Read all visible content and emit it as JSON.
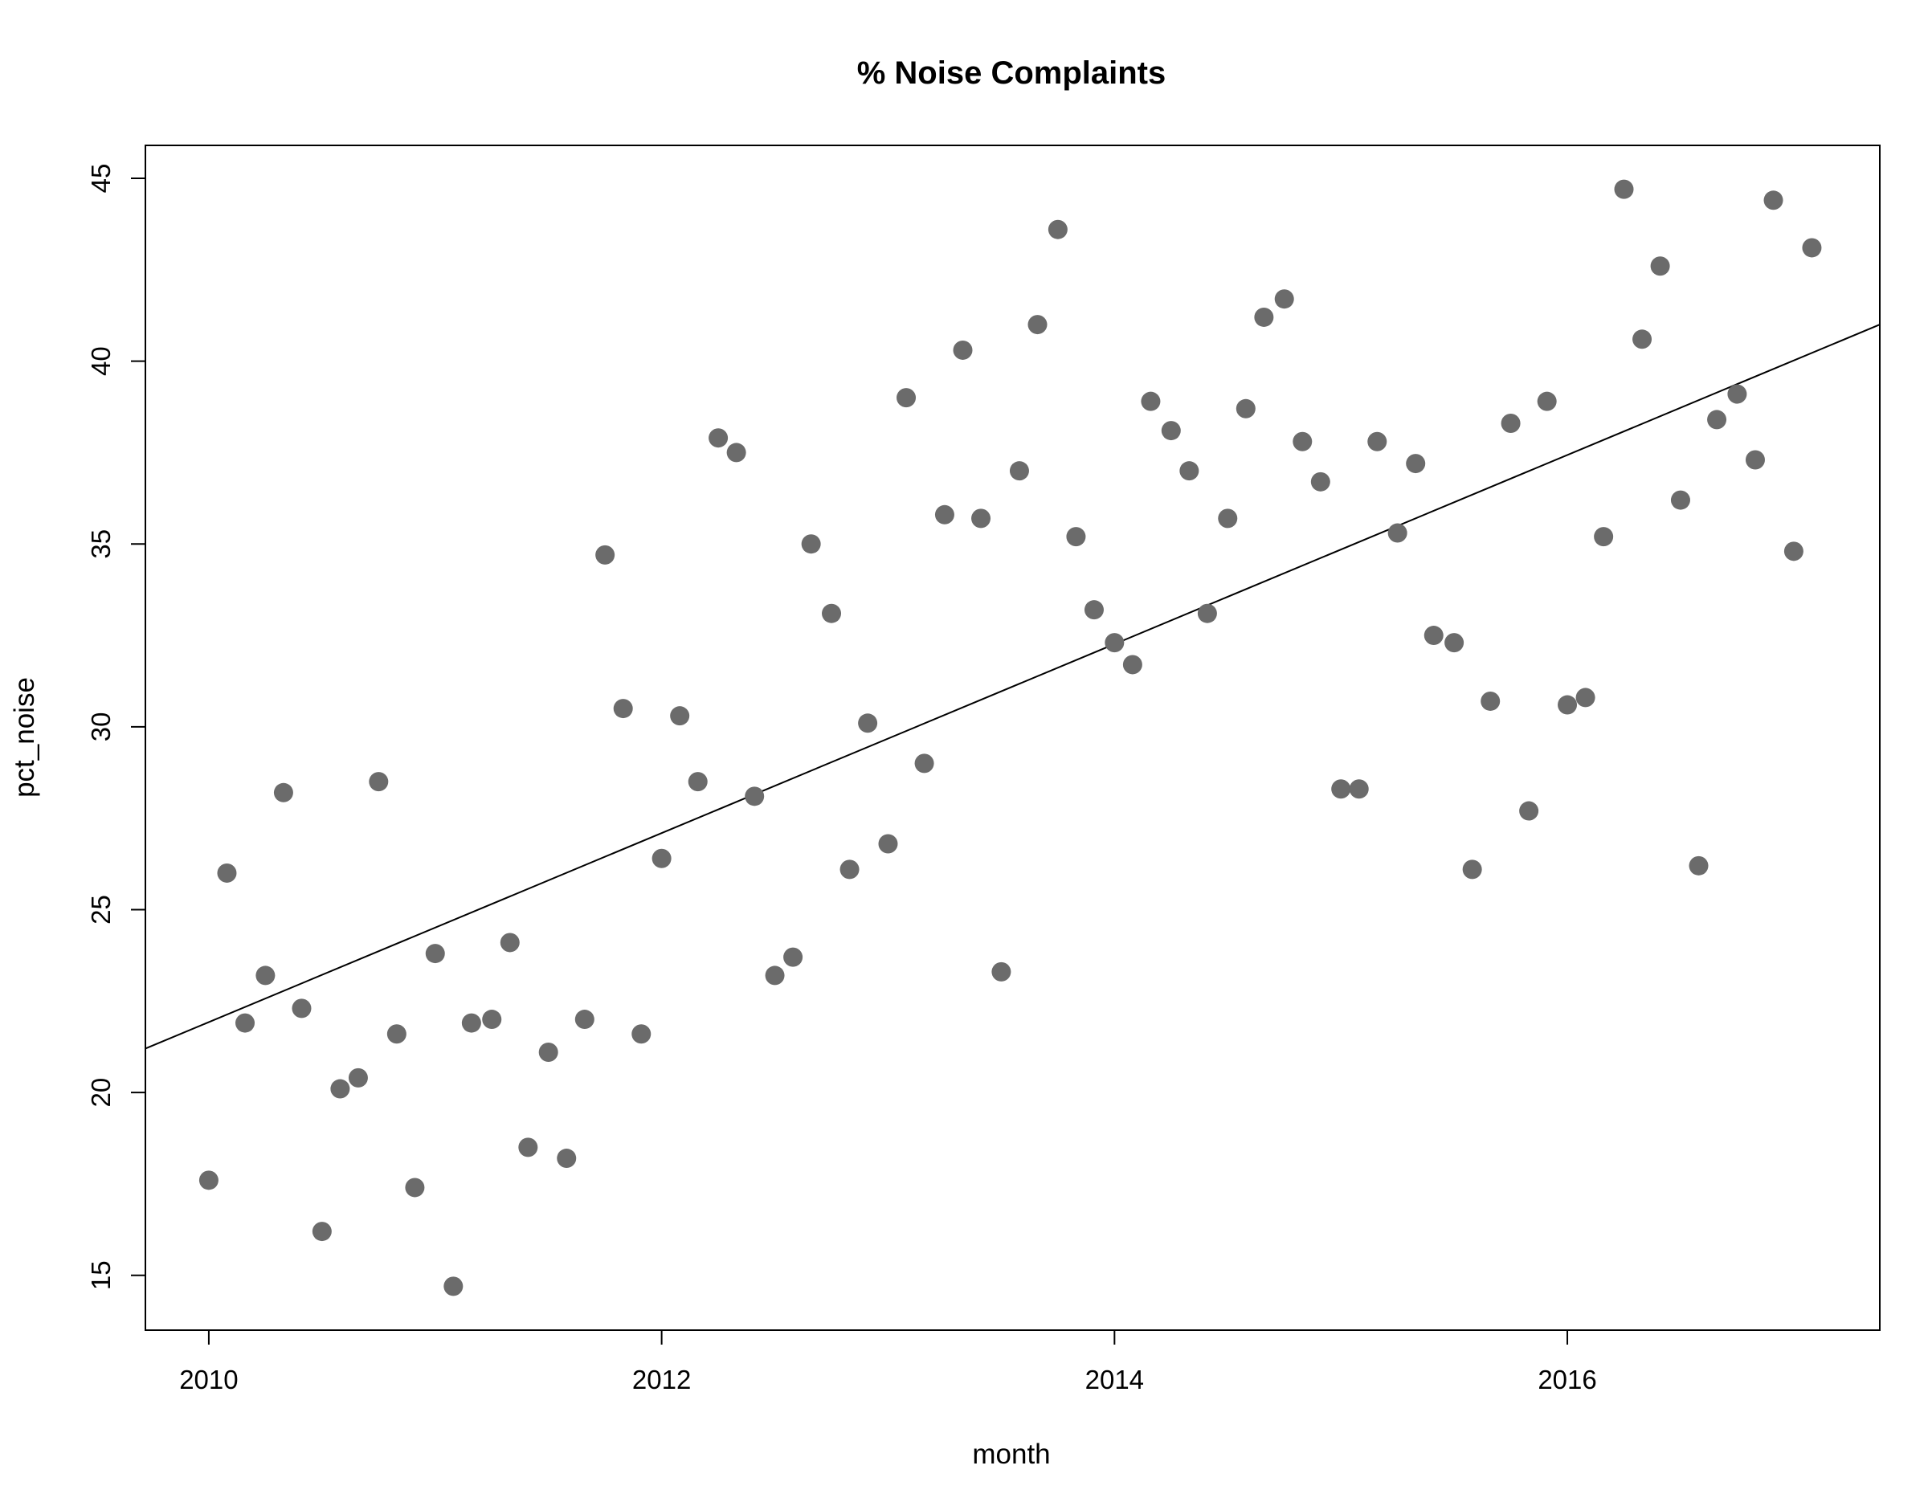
{
  "chart_data": {
    "type": "scatter",
    "title": "% Noise Complaints",
    "xlabel": "month",
    "ylabel": "pct_noise",
    "xlim": [
      2009.72,
      2017.38
    ],
    "ylim": [
      13.5,
      45.9
    ],
    "x_ticks": [
      2010,
      2012,
      2014,
      2016
    ],
    "x_tick_labels": [
      "2010",
      "2012",
      "2014",
      "2016"
    ],
    "y_ticks": [
      15,
      20,
      25,
      30,
      35,
      40,
      45
    ],
    "y_tick_labels": [
      "15",
      "20",
      "25",
      "30",
      "35",
      "40",
      "45"
    ],
    "grid": false,
    "legend": "none",
    "point_color": "#6b6b6b",
    "trend_line": {
      "type": "linear",
      "points": [
        [
          2009.72,
          21.2
        ],
        [
          2017.38,
          41.0
        ]
      ]
    },
    "points": [
      [
        2010.0,
        17.6
      ],
      [
        2010.08,
        26.0
      ],
      [
        2010.16,
        21.9
      ],
      [
        2010.25,
        23.2
      ],
      [
        2010.33,
        28.2
      ],
      [
        2010.41,
        22.3
      ],
      [
        2010.5,
        16.2
      ],
      [
        2010.58,
        20.1
      ],
      [
        2010.66,
        20.4
      ],
      [
        2010.75,
        28.5
      ],
      [
        2010.83,
        21.6
      ],
      [
        2010.91,
        17.4
      ],
      [
        2011.0,
        23.8
      ],
      [
        2011.08,
        14.7
      ],
      [
        2011.16,
        21.9
      ],
      [
        2011.25,
        22.0
      ],
      [
        2011.33,
        24.1
      ],
      [
        2011.41,
        18.5
      ],
      [
        2011.5,
        21.1
      ],
      [
        2011.58,
        18.2
      ],
      [
        2011.66,
        22.0
      ],
      [
        2011.75,
        34.7
      ],
      [
        2011.83,
        30.5
      ],
      [
        2011.91,
        21.6
      ],
      [
        2012.0,
        26.4
      ],
      [
        2012.08,
        30.3
      ],
      [
        2012.16,
        28.5
      ],
      [
        2012.25,
        37.9
      ],
      [
        2012.33,
        37.5
      ],
      [
        2012.41,
        28.1
      ],
      [
        2012.5,
        23.2
      ],
      [
        2012.58,
        23.7
      ],
      [
        2012.66,
        35.0
      ],
      [
        2012.75,
        33.1
      ],
      [
        2012.83,
        26.1
      ],
      [
        2012.91,
        30.1
      ],
      [
        2013.0,
        26.8
      ],
      [
        2013.08,
        39.0
      ],
      [
        2013.16,
        29.0
      ],
      [
        2013.25,
        35.8
      ],
      [
        2013.33,
        40.3
      ],
      [
        2013.41,
        35.7
      ],
      [
        2013.5,
        23.3
      ],
      [
        2013.58,
        37.0
      ],
      [
        2013.66,
        41.0
      ],
      [
        2013.75,
        43.6
      ],
      [
        2013.83,
        35.2
      ],
      [
        2013.91,
        33.2
      ],
      [
        2014.0,
        32.3
      ],
      [
        2014.08,
        31.7
      ],
      [
        2014.16,
        38.9
      ],
      [
        2014.25,
        38.1
      ],
      [
        2014.33,
        37.0
      ],
      [
        2014.41,
        33.1
      ],
      [
        2014.5,
        35.7
      ],
      [
        2014.58,
        38.7
      ],
      [
        2014.66,
        41.2
      ],
      [
        2014.75,
        41.7
      ],
      [
        2014.83,
        37.8
      ],
      [
        2014.91,
        36.7
      ],
      [
        2015.0,
        28.3
      ],
      [
        2015.08,
        28.3
      ],
      [
        2015.16,
        37.8
      ],
      [
        2015.25,
        35.3
      ],
      [
        2015.33,
        37.2
      ],
      [
        2015.41,
        32.5
      ],
      [
        2015.5,
        32.3
      ],
      [
        2015.58,
        26.1
      ],
      [
        2015.66,
        30.7
      ],
      [
        2015.75,
        38.3
      ],
      [
        2015.83,
        27.7
      ],
      [
        2015.91,
        38.9
      ],
      [
        2016.0,
        30.6
      ],
      [
        2016.08,
        30.8
      ],
      [
        2016.16,
        35.2
      ],
      [
        2016.25,
        44.7
      ],
      [
        2016.33,
        40.6
      ],
      [
        2016.41,
        42.6
      ],
      [
        2016.5,
        36.2
      ],
      [
        2016.58,
        26.2
      ],
      [
        2016.66,
        38.4
      ],
      [
        2016.75,
        39.1
      ],
      [
        2016.83,
        37.3
      ],
      [
        2016.91,
        44.4
      ],
      [
        2017.0,
        34.8
      ],
      [
        2017.08,
        43.1
      ]
    ]
  }
}
